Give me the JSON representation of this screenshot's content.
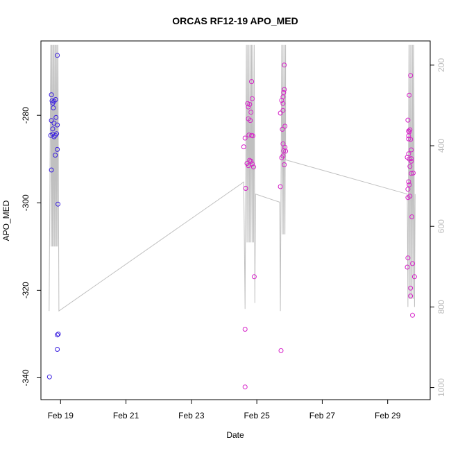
{
  "chart_data": {
    "type": "scatter",
    "title": "ORCAS RF12-19 APO_MED",
    "xlabel": "Date",
    "ylabel": "APO_MED",
    "x_range_days": [
      18.4,
      30.3
    ],
    "x_ticks": [
      {
        "day": 19,
        "label": "Feb 19"
      },
      {
        "day": 21,
        "label": "Feb 21"
      },
      {
        "day": 23,
        "label": "Feb 23"
      },
      {
        "day": 25,
        "label": "Feb 25"
      },
      {
        "day": 27,
        "label": "Feb 27"
      },
      {
        "day": 29,
        "label": "Feb 29"
      }
    ],
    "ylim": [
      -345,
      -263
    ],
    "y_ticks": [
      -340,
      -320,
      -300,
      -280
    ],
    "right_axis": {
      "ylim": [
        1030,
        140
      ],
      "reversed": true,
      "ticks": [
        200,
        400,
        600,
        800,
        1000
      ],
      "color": "#bdbdbd"
    },
    "series": [
      {
        "color": "#3a1fe0",
        "points": [
          [
            18.72,
            -275.3
          ],
          [
            18.74,
            -276.7
          ],
          [
            18.76,
            -277.2
          ],
          [
            18.78,
            -278.3
          ],
          [
            18.8,
            -276.8
          ],
          [
            18.85,
            -276.4
          ],
          [
            18.9,
            -266.3
          ],
          [
            18.72,
            -281.2
          ],
          [
            18.76,
            -283.1
          ],
          [
            18.8,
            -281.8
          ],
          [
            18.86,
            -280.5
          ],
          [
            18.9,
            -282.2
          ],
          [
            18.7,
            -284.6
          ],
          [
            18.76,
            -284.3
          ],
          [
            18.8,
            -284.9
          ],
          [
            18.84,
            -284.6
          ],
          [
            18.88,
            -284.2
          ],
          [
            18.9,
            -287.8
          ],
          [
            18.84,
            -289.1
          ],
          [
            18.72,
            -292.5
          ],
          [
            18.92,
            -300.3
          ],
          [
            18.9,
            -330.2
          ],
          [
            18.93,
            -330.0
          ],
          [
            18.9,
            -333.5
          ],
          [
            18.66,
            -339.8
          ]
        ]
      },
      {
        "color": "#d61fc8",
        "points": [
          [
            24.64,
            -285.2
          ],
          [
            24.6,
            -287.2
          ],
          [
            24.7,
            -291.0
          ],
          [
            24.66,
            -296.7
          ],
          [
            24.64,
            -328.9
          ],
          [
            24.64,
            -342.1
          ],
          [
            24.72,
            -277.3
          ],
          [
            24.74,
            -278.1
          ],
          [
            24.78,
            -277.5
          ],
          [
            24.82,
            -279.3
          ],
          [
            24.86,
            -276.2
          ],
          [
            24.84,
            -272.3
          ],
          [
            24.74,
            -280.8
          ],
          [
            24.8,
            -281.2
          ],
          [
            24.76,
            -284.5
          ],
          [
            24.84,
            -284.6
          ],
          [
            24.88,
            -284.7
          ],
          [
            24.78,
            -290.3
          ],
          [
            24.82,
            -290.5
          ],
          [
            24.86,
            -291.1
          ],
          [
            24.9,
            -291.8
          ],
          [
            24.74,
            -291.5
          ],
          [
            24.92,
            -316.9
          ],
          [
            25.72,
            -279.5
          ],
          [
            25.76,
            -276.6
          ],
          [
            25.8,
            -275.8
          ],
          [
            25.84,
            -274.1
          ],
          [
            25.82,
            -274.8
          ],
          [
            25.8,
            -277.3
          ],
          [
            25.8,
            -278.9
          ],
          [
            25.84,
            -268.5
          ],
          [
            25.78,
            -283.2
          ],
          [
            25.86,
            -282.5
          ],
          [
            25.8,
            -286.5
          ],
          [
            25.86,
            -287.3
          ],
          [
            25.82,
            -288.1
          ],
          [
            25.88,
            -288.2
          ],
          [
            25.8,
            -289.3
          ],
          [
            25.76,
            -289.7
          ],
          [
            25.84,
            -291.3
          ],
          [
            25.72,
            -296.3
          ],
          [
            25.74,
            -333.8
          ],
          [
            29.62,
            -281.1
          ],
          [
            29.64,
            -284.7
          ],
          [
            29.66,
            -283.8
          ],
          [
            29.7,
            -285.5
          ],
          [
            29.72,
            -287.9
          ],
          [
            29.64,
            -288.8
          ],
          [
            29.6,
            -289.6
          ],
          [
            29.66,
            -290.0
          ],
          [
            29.68,
            -291.7
          ],
          [
            29.72,
            -293.3
          ],
          [
            29.64,
            -295.2
          ],
          [
            29.62,
            -296.9
          ],
          [
            29.68,
            -298.5
          ],
          [
            29.66,
            -275.4
          ],
          [
            29.7,
            -270.9
          ],
          [
            29.64,
            -283.6
          ],
          [
            29.72,
            -290.5
          ],
          [
            29.78,
            -293.2
          ],
          [
            29.6,
            -314.7
          ],
          [
            29.62,
            -312.6
          ],
          [
            29.7,
            -319.5
          ],
          [
            29.82,
            -316.9
          ],
          [
            29.76,
            -313.9
          ],
          [
            29.64,
            -285.4
          ],
          [
            29.68,
            -283.3
          ],
          [
            29.72,
            -289.9
          ],
          [
            29.74,
            -303.2
          ],
          [
            29.76,
            -325.7
          ],
          [
            29.7,
            -321.3
          ],
          [
            29.66,
            -295.9
          ],
          [
            29.62,
            -298.8
          ]
        ]
      }
    ]
  }
}
